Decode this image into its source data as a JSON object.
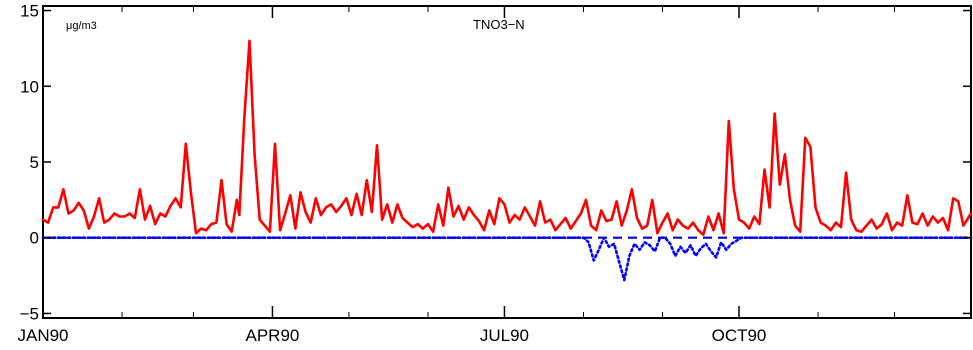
{
  "chart_data": {
    "type": "line",
    "title": "TNO3−N",
    "units_label": "μg/m3",
    "xlabel": "",
    "ylabel": "",
    "ylim": [
      -5.3,
      15.3
    ],
    "yticks": [
      {
        "value": -5,
        "label": "−5"
      },
      {
        "value": 0,
        "label": "0"
      },
      {
        "value": 5,
        "label": "5"
      },
      {
        "value": 10,
        "label": "10"
      },
      {
        "value": 15,
        "label": "15"
      }
    ],
    "xlim": [
      "1990-01-01",
      "1990-12-31"
    ],
    "x_major_ticks": [
      {
        "date": "1990-01-01",
        "label": "JAN90"
      },
      {
        "date": "1990-04-01",
        "label": "APR90"
      },
      {
        "date": "1990-07-01",
        "label": "JUL90"
      },
      {
        "date": "1990-10-01",
        "label": "OCT90"
      }
    ],
    "x_minor_ticks": [
      "1990-02-01",
      "1990-03-01",
      "1990-05-01",
      "1990-06-01",
      "1990-08-01",
      "1990-09-01",
      "1990-11-01",
      "1990-12-01"
    ],
    "grid": false,
    "legend": "none",
    "series": [
      {
        "color": "#ff0000",
        "style": "solid",
        "x": [
          "1990-01-01",
          "1990-01-03",
          "1990-01-05",
          "1990-01-07",
          "1990-01-09",
          "1990-01-11",
          "1990-01-13",
          "1990-01-15",
          "1990-01-17",
          "1990-01-19",
          "1990-01-21",
          "1990-01-23",
          "1990-01-25",
          "1990-01-27",
          "1990-01-29",
          "1990-01-31",
          "1990-02-02",
          "1990-02-04",
          "1990-02-06",
          "1990-02-08",
          "1990-02-10",
          "1990-02-12",
          "1990-02-14",
          "1990-02-16",
          "1990-02-18",
          "1990-02-20",
          "1990-02-22",
          "1990-02-24",
          "1990-02-26",
          "1990-02-28",
          "1990-03-02",
          "1990-03-04",
          "1990-03-06",
          "1990-03-08",
          "1990-03-10",
          "1990-03-12",
          "1990-03-14",
          "1990-03-16",
          "1990-03-18",
          "1990-03-19",
          "1990-03-21",
          "1990-03-23",
          "1990-03-25",
          "1990-03-27",
          "1990-03-29",
          "1990-03-31",
          "1990-04-02",
          "1990-04-04",
          "1990-04-06",
          "1990-04-08",
          "1990-04-10",
          "1990-04-12",
          "1990-04-14",
          "1990-04-16",
          "1990-04-18",
          "1990-04-20",
          "1990-04-22",
          "1990-04-24",
          "1990-04-26",
          "1990-04-28",
          "1990-04-30",
          "1990-05-02",
          "1990-05-04",
          "1990-05-06",
          "1990-05-08",
          "1990-05-10",
          "1990-05-12",
          "1990-05-14",
          "1990-05-16",
          "1990-05-18",
          "1990-05-20",
          "1990-05-22",
          "1990-05-24",
          "1990-05-26",
          "1990-05-28",
          "1990-05-30",
          "1990-06-01",
          "1990-06-03",
          "1990-06-05",
          "1990-06-07",
          "1990-06-09",
          "1990-06-11",
          "1990-06-13",
          "1990-06-15",
          "1990-06-17",
          "1990-06-19",
          "1990-06-21",
          "1990-06-23",
          "1990-06-25",
          "1990-06-27",
          "1990-06-29",
          "1990-07-01",
          "1990-07-03",
          "1990-07-05",
          "1990-07-07",
          "1990-07-09",
          "1990-07-11",
          "1990-07-13",
          "1990-07-15",
          "1990-07-17",
          "1990-07-19",
          "1990-07-21",
          "1990-07-23",
          "1990-07-25",
          "1990-07-27",
          "1990-07-29",
          "1990-07-31",
          "1990-08-02",
          "1990-08-04",
          "1990-08-06",
          "1990-08-08",
          "1990-08-10",
          "1990-08-12",
          "1990-08-14",
          "1990-08-16",
          "1990-08-18",
          "1990-08-20",
          "1990-08-22",
          "1990-08-24",
          "1990-08-26",
          "1990-08-28",
          "1990-08-30",
          "1990-09-01",
          "1990-09-03",
          "1990-09-05",
          "1990-09-07",
          "1990-09-09",
          "1990-09-11",
          "1990-09-13",
          "1990-09-15",
          "1990-09-17",
          "1990-09-19",
          "1990-09-21",
          "1990-09-23",
          "1990-09-25",
          "1990-09-27",
          "1990-09-29",
          "1990-10-01",
          "1990-10-03",
          "1990-10-05",
          "1990-10-07",
          "1990-10-09",
          "1990-10-11",
          "1990-10-13",
          "1990-10-15",
          "1990-10-17",
          "1990-10-19",
          "1990-10-21",
          "1990-10-23",
          "1990-10-25",
          "1990-10-27",
          "1990-10-29",
          "1990-10-31",
          "1990-11-02",
          "1990-11-04",
          "1990-11-06",
          "1990-11-08",
          "1990-11-10",
          "1990-11-12",
          "1990-11-14",
          "1990-11-16",
          "1990-11-18",
          "1990-11-20",
          "1990-11-22",
          "1990-11-24",
          "1990-11-26",
          "1990-11-28",
          "1990-11-30",
          "1990-12-02",
          "1990-12-04",
          "1990-12-06",
          "1990-12-08",
          "1990-12-10",
          "1990-12-12",
          "1990-12-14",
          "1990-12-16",
          "1990-12-18",
          "1990-12-20",
          "1990-12-22",
          "1990-12-24",
          "1990-12-26",
          "1990-12-28",
          "1990-12-31"
        ],
        "y": [
          1.2,
          1.0,
          2.0,
          2.0,
          3.2,
          1.6,
          1.8,
          2.3,
          1.8,
          0.6,
          1.4,
          2.6,
          1.0,
          1.2,
          1.6,
          1.4,
          1.4,
          1.6,
          1.3,
          3.2,
          1.2,
          2.1,
          0.9,
          1.6,
          1.4,
          2.1,
          2.6,
          2.0,
          6.2,
          3.0,
          0.3,
          0.6,
          0.5,
          0.9,
          1.0,
          3.8,
          0.9,
          0.4,
          2.5,
          1.5,
          8.0,
          13.0,
          5.5,
          1.2,
          0.8,
          0.4,
          6.2,
          0.5,
          1.6,
          2.8,
          0.6,
          3.0,
          1.7,
          1.0,
          2.6,
          1.5,
          2.0,
          2.2,
          1.7,
          2.1,
          2.6,
          1.5,
          2.9,
          1.5,
          3.8,
          1.7,
          6.1,
          1.2,
          2.2,
          1.0,
          2.2,
          1.3,
          1.0,
          0.7,
          0.9,
          0.6,
          0.9,
          0.4,
          2.2,
          0.8,
          3.3,
          1.4,
          2.1,
          1.2,
          2.0,
          1.5,
          1.1,
          0.5,
          1.8,
          0.9,
          2.6,
          2.2,
          1.0,
          1.5,
          1.2,
          2.0,
          1.4,
          0.8,
          2.4,
          1.0,
          1.2,
          0.5,
          0.9,
          1.3,
          0.6,
          1.1,
          1.6,
          2.5,
          0.8,
          0.5,
          1.8,
          1.1,
          1.2,
          2.4,
          0.8,
          1.8,
          3.2,
          1.3,
          0.6,
          0.8,
          2.5,
          0.3,
          1.0,
          1.6,
          0.5,
          1.2,
          0.8,
          0.6,
          1.0,
          0.5,
          0.2,
          1.4,
          0.5,
          1.6,
          0.3,
          7.7,
          3.2,
          1.2,
          1.0,
          0.6,
          1.4,
          0.9,
          4.5,
          2.0,
          8.2,
          3.5,
          5.5,
          2.5,
          0.8,
          0.4,
          6.6,
          6.0,
          2.0,
          1.0,
          0.8,
          0.5,
          1.0,
          0.7,
          4.3,
          1.2,
          0.5,
          0.4,
          0.8,
          1.2,
          0.6,
          0.9,
          1.6,
          0.5,
          1.0,
          0.8,
          2.8,
          1.0,
          0.9,
          1.6,
          0.8,
          1.4,
          1.0,
          1.3,
          0.5,
          2.6,
          2.4,
          0.8,
          1.6
        ]
      },
      {
        "color": "#0000ff",
        "style": "dotted",
        "x": [
          "1990-01-01",
          "1990-08-01",
          "1990-08-03",
          "1990-08-05",
          "1990-08-07",
          "1990-08-09",
          "1990-08-11",
          "1990-08-13",
          "1990-08-15",
          "1990-08-17",
          "1990-08-19",
          "1990-08-21",
          "1990-08-23",
          "1990-08-25",
          "1990-08-27",
          "1990-08-29",
          "1990-08-31",
          "1990-09-02",
          "1990-09-04",
          "1990-09-06",
          "1990-09-08",
          "1990-09-10",
          "1990-09-12",
          "1990-09-14",
          "1990-09-16",
          "1990-09-18",
          "1990-09-20",
          "1990-09-22",
          "1990-09-24",
          "1990-09-26",
          "1990-09-28",
          "1990-09-30",
          "1990-10-02",
          "1990-12-31"
        ],
        "y": [
          0,
          0,
          -0.3,
          -1.5,
          -0.8,
          0,
          -0.6,
          -0.4,
          -1.6,
          -2.8,
          -1.2,
          -0.4,
          -0.8,
          -0.3,
          -0.5,
          -0.9,
          0,
          0,
          -0.4,
          -1.2,
          -0.6,
          -1.0,
          -0.5,
          -1.2,
          -0.7,
          -0.4,
          -0.9,
          -1.3,
          -0.3,
          -0.8,
          -0.4,
          -0.2,
          0,
          0
        ]
      },
      {
        "color": "#0000dd",
        "style": "dashed",
        "x": [
          "1990-01-01",
          "1990-12-31"
        ],
        "y": [
          0,
          0
        ]
      }
    ]
  }
}
